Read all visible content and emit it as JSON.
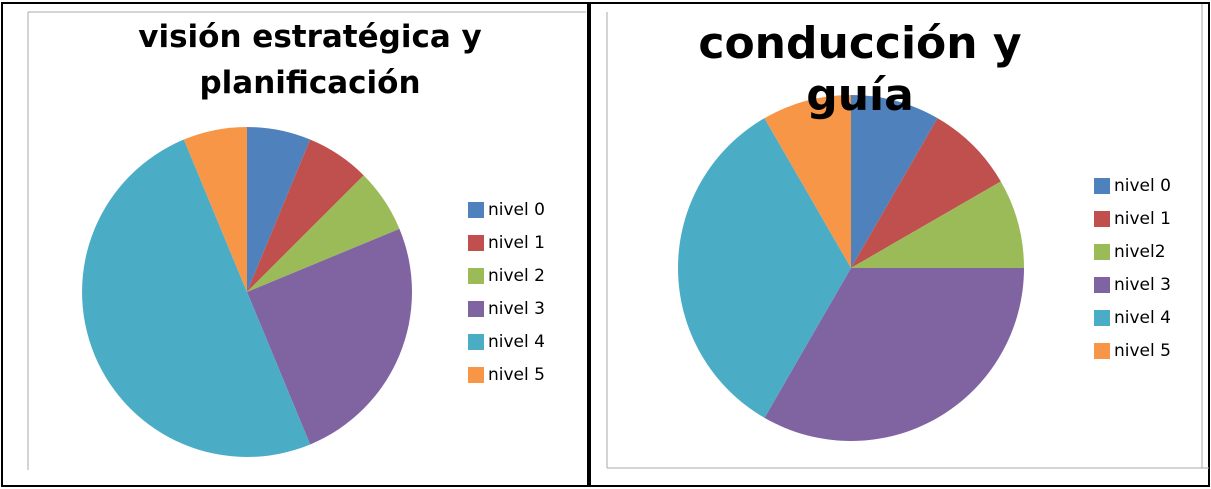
{
  "chart_data": [
    {
      "type": "pie",
      "title": "visión estratégica y planificación",
      "categories": [
        "nivel 0",
        "nivel 1",
        "nivel 2",
        "nivel 3",
        "nivel 4",
        "nivel 5"
      ],
      "values": [
        1,
        1,
        1,
        4,
        8,
        1
      ],
      "colors": [
        "#4f81bd",
        "#c0504d",
        "#9bbb59",
        "#8064a2",
        "#4bacc6",
        "#f79646"
      ]
    },
    {
      "type": "pie",
      "title": "conducción y guía",
      "categories": [
        "nivel 0",
        "nivel 1",
        "nivel2",
        "nivel 3",
        "nivel 4",
        "nivel 5"
      ],
      "values": [
        1,
        1,
        1,
        4,
        4,
        1
      ],
      "colors": [
        "#4f81bd",
        "#c0504d",
        "#9bbb59",
        "#8064a2",
        "#4bacc6",
        "#f79646"
      ]
    }
  ]
}
